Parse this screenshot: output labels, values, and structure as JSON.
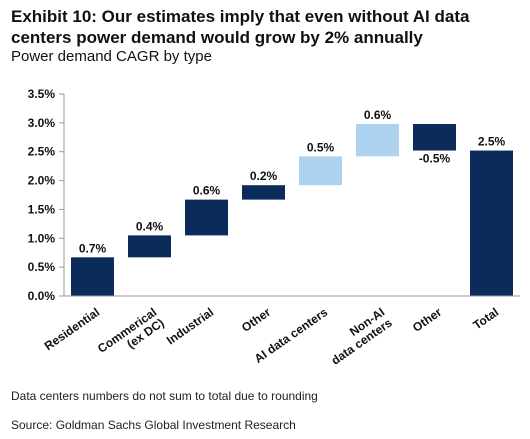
{
  "title": "Exhibit 10: Our estimates imply that even without AI data centers power demand would grow by 2% annually",
  "subtitle": "Power demand CAGR by type",
  "note": "Data centers numbers do not sum to total due to rounding",
  "source": "Source: Goldman Sachs Global Investment Research",
  "colors": {
    "dark": "#0b2b5b",
    "light": "#aed3f0",
    "axis": "#9a9a9a"
  },
  "chart_data": {
    "type": "bar",
    "subtype": "waterfall",
    "title": "Power demand CAGR by type",
    "xlabel": "",
    "ylabel": "",
    "ylim": [
      0,
      3.5
    ],
    "yticks": [
      "0.0%",
      "0.5%",
      "1.0%",
      "1.5%",
      "2.0%",
      "2.5%",
      "3.0%",
      "3.5%"
    ],
    "ytick_values": [
      0,
      0.5,
      1.0,
      1.5,
      2.0,
      2.5,
      3.0,
      3.5
    ],
    "grid": false,
    "legend": "none",
    "bars": [
      {
        "category": [
          "Residential"
        ],
        "start": 0.0,
        "end": 0.67,
        "label": "0.7%",
        "color": "dark"
      },
      {
        "category": [
          "Commerical",
          "(ex DC)"
        ],
        "start": 0.67,
        "end": 1.05,
        "label": "0.4%",
        "color": "dark"
      },
      {
        "category": [
          "Industrial"
        ],
        "start": 1.05,
        "end": 1.67,
        "label": "0.6%",
        "color": "dark"
      },
      {
        "category": [
          "Other"
        ],
        "start": 1.67,
        "end": 1.92,
        "label": "0.2%",
        "color": "dark"
      },
      {
        "category": [
          "AI data centers"
        ],
        "start": 1.92,
        "end": 2.42,
        "label": "0.5%",
        "color": "light"
      },
      {
        "category": [
          "Non-AI",
          "data centers"
        ],
        "start": 2.42,
        "end": 2.98,
        "label": "0.6%",
        "color": "light"
      },
      {
        "category": [
          "Other"
        ],
        "start": 2.98,
        "end": 2.52,
        "label": "-0.5%",
        "color": "dark"
      },
      {
        "category": [
          "Total"
        ],
        "start": 0.0,
        "end": 2.52,
        "label": "2.5%",
        "color": "dark"
      }
    ]
  }
}
